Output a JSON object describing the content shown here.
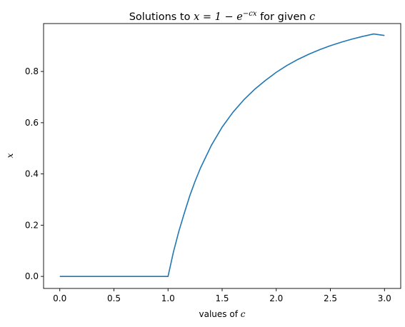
{
  "chart_data": {
    "type": "line",
    "title": {
      "prefix": "Solutions to ",
      "math": "x = 1 − e",
      "superscript": "−cx",
      "suffix": " for given ",
      "var": "c"
    },
    "xlabel": {
      "text": "values of ",
      "var": "c"
    },
    "ylabel": {
      "var": "x"
    },
    "xlim": [
      -0.15,
      3.15
    ],
    "ylim": [
      -0.047,
      0.987
    ],
    "xticks": [
      {
        "value": 0.0,
        "label": "0.0"
      },
      {
        "value": 0.5,
        "label": "0.5"
      },
      {
        "value": 1.0,
        "label": "1.0"
      },
      {
        "value": 1.5,
        "label": "1.5"
      },
      {
        "value": 2.0,
        "label": "2.0"
      },
      {
        "value": 2.5,
        "label": "2.5"
      },
      {
        "value": 3.0,
        "label": "3.0"
      }
    ],
    "yticks": [
      {
        "value": 0.0,
        "label": "0.0"
      },
      {
        "value": 0.2,
        "label": "0.2"
      },
      {
        "value": 0.4,
        "label": "0.4"
      },
      {
        "value": 0.6,
        "label": "0.6"
      },
      {
        "value": 0.8,
        "label": "0.8"
      }
    ],
    "grid": false,
    "series": [
      {
        "color": "#1f77b4",
        "x": [
          0.0,
          0.25,
          0.5,
          0.75,
          1.0,
          1.05,
          1.1,
          1.15,
          1.2,
          1.25,
          1.3,
          1.4,
          1.5,
          1.6,
          1.7,
          1.8,
          1.9,
          2.0,
          2.1,
          2.2,
          2.3,
          2.4,
          2.5,
          2.6,
          2.7,
          2.8,
          2.9,
          3.0
        ],
        "y": [
          0.0,
          0.0,
          0.0,
          0.0,
          0.0,
          0.0952,
          0.1761,
          0.2463,
          0.3137,
          0.3714,
          0.4233,
          0.5113,
          0.5828,
          0.6409,
          0.6892,
          0.7302,
          0.7651,
          0.7968,
          0.8237,
          0.847,
          0.8672,
          0.8849,
          0.9007,
          0.9142,
          0.9263,
          0.937,
          0.9464,
          0.9405
        ]
      }
    ]
  }
}
